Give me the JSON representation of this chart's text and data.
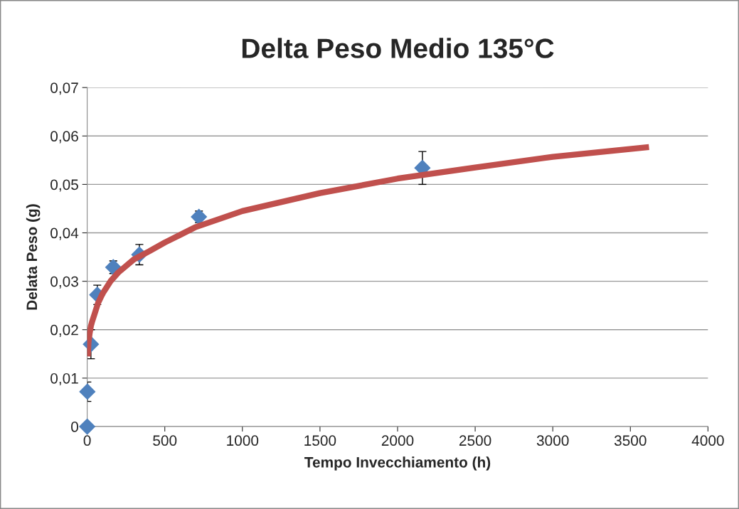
{
  "chart_data": {
    "type": "scatter",
    "title": "Delta Peso Medio 135°C",
    "xlabel": "Tempo Invecchiamento (h)",
    "ylabel": "Delata Peso (g)",
    "xlim": [
      0,
      4000
    ],
    "xticks": [
      0,
      500,
      1000,
      1500,
      2000,
      2500,
      3000,
      3500,
      4000
    ],
    "ylim": [
      0,
      0.07
    ],
    "yticks": [
      {
        "value": 0,
        "label": "0"
      },
      {
        "value": 0.01,
        "label": "0,01"
      },
      {
        "value": 0.02,
        "label": "0,02"
      },
      {
        "value": 0.03,
        "label": "0,03"
      },
      {
        "value": 0.04,
        "label": "0,04"
      },
      {
        "value": 0.05,
        "label": "0,05"
      },
      {
        "value": 0.06,
        "label": "0,06"
      },
      {
        "value": 0.07,
        "label": "0,07"
      }
    ],
    "grid": "y",
    "legend": false,
    "series": [
      {
        "marker": "diamond",
        "color": "#4f81bd",
        "x": [
          0,
          1,
          24,
          65,
          168,
          336,
          720,
          2160
        ],
        "values": [
          0,
          0.0072,
          0.017,
          0.0272,
          0.0329,
          0.0355,
          0.0433,
          0.0534
        ],
        "errors": [
          null,
          0.002,
          0.003,
          0.002,
          0.0013,
          0.0021,
          0.0012,
          0.0034
        ]
      },
      {
        "type": "line",
        "marker": "none",
        "color": "#c0504d",
        "x": [
          4,
          8,
          12,
          16,
          20,
          24,
          30,
          40,
          50,
          70,
          100,
          150,
          200,
          300,
          400,
          500,
          700,
          1000,
          1500,
          2000,
          2500,
          3000,
          3620
        ],
        "values": [
          0.0145,
          0.0172,
          0.0183,
          0.0193,
          0.02,
          0.0208,
          0.0215,
          0.0225,
          0.0235,
          0.0255,
          0.0275,
          0.03,
          0.0318,
          0.0345,
          0.0362,
          0.038,
          0.0412,
          0.0445,
          0.0482,
          0.0512,
          0.0535,
          0.0557,
          0.0577
        ]
      }
    ]
  }
}
